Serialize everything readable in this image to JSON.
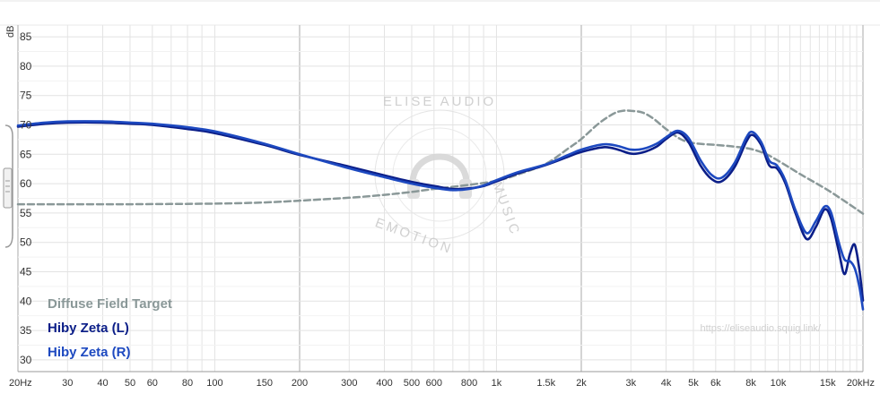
{
  "chart_data": {
    "type": "line",
    "xscale": "log",
    "xlim": [
      20,
      20000
    ],
    "ylim": [
      28,
      87
    ],
    "ylabel": "dB",
    "yticks": [
      30,
      35,
      40,
      45,
      50,
      55,
      60,
      65,
      70,
      75,
      80,
      85
    ],
    "xticks": [
      {
        "value": 20,
        "label": "20Hz"
      },
      {
        "value": 30,
        "label": "30"
      },
      {
        "value": 40,
        "label": "40"
      },
      {
        "value": 50,
        "label": "50"
      },
      {
        "value": 60,
        "label": "60"
      },
      {
        "value": 80,
        "label": "80"
      },
      {
        "value": 100,
        "label": "100"
      },
      {
        "value": 150,
        "label": "150"
      },
      {
        "value": 200,
        "label": "200"
      },
      {
        "value": 300,
        "label": "300"
      },
      {
        "value": 400,
        "label": "400"
      },
      {
        "value": 500,
        "label": "500"
      },
      {
        "value": 600,
        "label": "600"
      },
      {
        "value": 800,
        "label": "800"
      },
      {
        "value": 1000,
        "label": "1k"
      },
      {
        "value": 1500,
        "label": "1.5k"
      },
      {
        "value": 2000,
        "label": "2k"
      },
      {
        "value": 3000,
        "label": "3k"
      },
      {
        "value": 4000,
        "label": "4k"
      },
      {
        "value": 5000,
        "label": "5k"
      },
      {
        "value": 6000,
        "label": "6k"
      },
      {
        "value": 8000,
        "label": "8k"
      },
      {
        "value": 10000,
        "label": "10k"
      },
      {
        "value": 15000,
        "label": "15k"
      },
      {
        "value": 20000,
        "label": "20kHz"
      }
    ],
    "major_gridlines_x": [
      20,
      200,
      2000,
      20000
    ],
    "grid": true,
    "legend_position": "bottom-left",
    "series": [
      {
        "name": "Diffuse Field Target",
        "color": "#8a9898",
        "dashed": true,
        "points": [
          [
            20,
            56.5
          ],
          [
            30,
            56.5
          ],
          [
            50,
            56.5
          ],
          [
            100,
            56.6
          ],
          [
            150,
            56.8
          ],
          [
            200,
            57.1
          ],
          [
            300,
            57.6
          ],
          [
            400,
            58.1
          ],
          [
            500,
            58.6
          ],
          [
            600,
            59.1
          ],
          [
            800,
            59.8
          ],
          [
            1000,
            60.5
          ],
          [
            1200,
            61.6
          ],
          [
            1500,
            63.4
          ],
          [
            1800,
            66.0
          ],
          [
            2000,
            67.6
          ],
          [
            2300,
            70.2
          ],
          [
            2600,
            71.9
          ],
          [
            2800,
            72.4
          ],
          [
            3000,
            72.4
          ],
          [
            3300,
            72.1
          ],
          [
            3600,
            71.1
          ],
          [
            4000,
            69.3
          ],
          [
            4500,
            67.6
          ],
          [
            5000,
            66.9
          ],
          [
            6000,
            66.6
          ],
          [
            7000,
            66.3
          ],
          [
            8000,
            65.9
          ],
          [
            9000,
            65.1
          ],
          [
            10000,
            63.9
          ],
          [
            12000,
            61.6
          ],
          [
            15000,
            58.9
          ],
          [
            18000,
            56.4
          ],
          [
            20000,
            54.9
          ]
        ]
      },
      {
        "name": "Hiby Zeta (L)",
        "color": "#0b1e88",
        "dashed": false,
        "points": [
          [
            20,
            69.7
          ],
          [
            25,
            70.2
          ],
          [
            30,
            70.4
          ],
          [
            40,
            70.4
          ],
          [
            50,
            70.2
          ],
          [
            60,
            70.0
          ],
          [
            80,
            69.3
          ],
          [
            100,
            68.6
          ],
          [
            150,
            66.6
          ],
          [
            200,
            64.9
          ],
          [
            300,
            62.9
          ],
          [
            400,
            61.4
          ],
          [
            500,
            60.3
          ],
          [
            600,
            59.6
          ],
          [
            700,
            59.1
          ],
          [
            800,
            59.2
          ],
          [
            900,
            59.6
          ],
          [
            1000,
            60.4
          ],
          [
            1200,
            61.8
          ],
          [
            1500,
            63.2
          ],
          [
            1800,
            64.6
          ],
          [
            2000,
            65.4
          ],
          [
            2400,
            66.2
          ],
          [
            2700,
            65.8
          ],
          [
            3000,
            65.1
          ],
          [
            3300,
            65.3
          ],
          [
            3700,
            66.3
          ],
          [
            4000,
            67.6
          ],
          [
            4400,
            68.7
          ],
          [
            4800,
            67.1
          ],
          [
            5300,
            63.1
          ],
          [
            5800,
            60.8
          ],
          [
            6300,
            60.4
          ],
          [
            7000,
            62.8
          ],
          [
            7700,
            67.1
          ],
          [
            8100,
            68.3
          ],
          [
            8700,
            66.6
          ],
          [
            9300,
            63.1
          ],
          [
            9900,
            62.6
          ],
          [
            10600,
            60.1
          ],
          [
            11500,
            55.1
          ],
          [
            12600,
            50.6
          ],
          [
            13600,
            52.6
          ],
          [
            14600,
            55.6
          ],
          [
            15400,
            54.1
          ],
          [
            16400,
            48.6
          ],
          [
            17200,
            44.6
          ],
          [
            18000,
            48.1
          ],
          [
            18700,
            49.6
          ],
          [
            19400,
            45.6
          ],
          [
            20000,
            40.1
          ]
        ]
      },
      {
        "name": "Hiby Zeta (R)",
        "color": "#1d49c0",
        "dashed": false,
        "points": [
          [
            20,
            69.9
          ],
          [
            25,
            70.4
          ],
          [
            30,
            70.6
          ],
          [
            40,
            70.6
          ],
          [
            50,
            70.4
          ],
          [
            60,
            70.2
          ],
          [
            80,
            69.6
          ],
          [
            100,
            68.9
          ],
          [
            150,
            66.8
          ],
          [
            200,
            65.0
          ],
          [
            300,
            62.6
          ],
          [
            400,
            61.1
          ],
          [
            500,
            60.0
          ],
          [
            600,
            59.3
          ],
          [
            700,
            58.9
          ],
          [
            800,
            59.1
          ],
          [
            900,
            59.7
          ],
          [
            1000,
            60.6
          ],
          [
            1200,
            62.0
          ],
          [
            1500,
            63.3
          ],
          [
            1800,
            64.9
          ],
          [
            2000,
            65.8
          ],
          [
            2400,
            66.7
          ],
          [
            2700,
            66.4
          ],
          [
            3000,
            65.8
          ],
          [
            3300,
            65.9
          ],
          [
            3700,
            66.8
          ],
          [
            4000,
            67.9
          ],
          [
            4400,
            69.0
          ],
          [
            4800,
            67.8
          ],
          [
            5300,
            64.0
          ],
          [
            5800,
            61.5
          ],
          [
            6300,
            61.0
          ],
          [
            7000,
            63.5
          ],
          [
            7700,
            67.8
          ],
          [
            8100,
            68.8
          ],
          [
            8700,
            67.1
          ],
          [
            9300,
            63.9
          ],
          [
            9900,
            63.1
          ],
          [
            10600,
            60.6
          ],
          [
            11500,
            55.6
          ],
          [
            12600,
            51.6
          ],
          [
            13600,
            53.6
          ],
          [
            14600,
            56.1
          ],
          [
            15400,
            55.1
          ],
          [
            16400,
            50.1
          ],
          [
            17200,
            47.1
          ],
          [
            18000,
            46.8
          ],
          [
            18700,
            45.6
          ],
          [
            19400,
            42.6
          ],
          [
            20000,
            38.6
          ]
        ]
      }
    ],
    "watermark_url": "https://eliseaudio.squig.link/",
    "watermark_top": "ELISE AUDIO",
    "watermark_right": "MUSIC",
    "watermark_bottom": "EMOTION"
  }
}
